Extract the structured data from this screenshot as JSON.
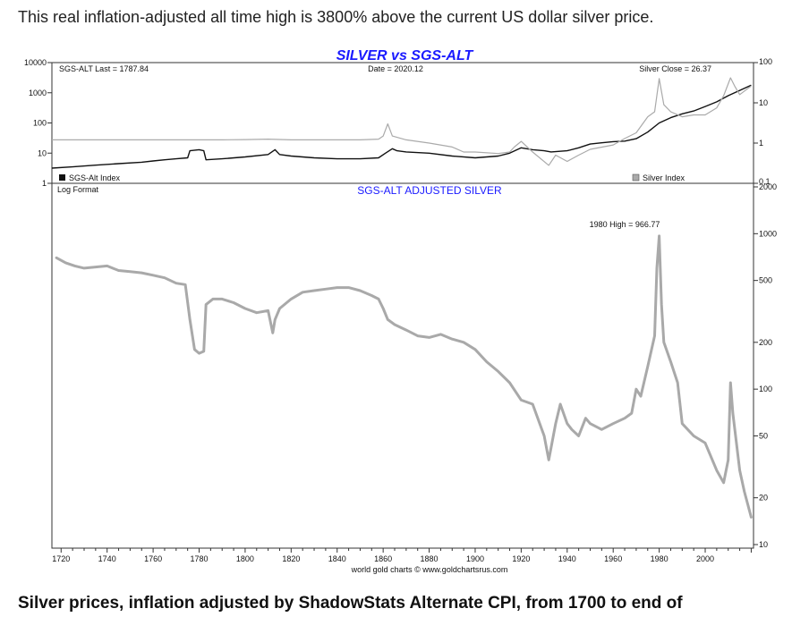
{
  "intro_text": "This real inflation-adjusted all time high is 3800% above the current US dollar silver price.",
  "caption_text": "Silver prices, inflation adjusted by ShadowStats Alternate CPI, from 1700 to end of",
  "colors": {
    "sgs_line": "#111111",
    "silver_line": "#aaaaaa",
    "adjusted_line": "#a9a9a9",
    "title": "#1a1aff"
  },
  "chart_data": [
    {
      "type": "line",
      "title": "SILVER vs SGS-ALT",
      "info_left": "SGS-ALT Last = 1787.84",
      "info_mid": "Date = 2020.12",
      "info_right": "Silver Close = 26.37",
      "legend": [
        "SGS-Alt Index",
        "Silver Index"
      ],
      "x_range": [
        1716,
        2021
      ],
      "y_left": {
        "scale": "log",
        "range": [
          1,
          10000
        ],
        "ticks": [
          1,
          10,
          100,
          1000,
          10000
        ],
        "tick_labels": [
          "1",
          "10",
          "100",
          "1000",
          "10000"
        ]
      },
      "y_right": {
        "scale": "log",
        "range": [
          0.1,
          100
        ],
        "ticks": [
          0.1,
          1,
          10,
          100
        ],
        "tick_labels": [
          "0.1",
          "1",
          "10",
          "100"
        ]
      },
      "series": [
        {
          "name": "SGS-Alt Index",
          "axis": "left",
          "x": [
            1716,
            1725,
            1735,
            1745,
            1755,
            1760,
            1765,
            1770,
            1775,
            1776,
            1780,
            1782,
            1783,
            1790,
            1800,
            1810,
            1813,
            1815,
            1820,
            1830,
            1840,
            1850,
            1858,
            1861,
            1864,
            1866,
            1870,
            1880,
            1890,
            1900,
            1910,
            1915,
            1920,
            1925,
            1930,
            1933,
            1940,
            1945,
            1950,
            1955,
            1960,
            1965,
            1970,
            1975,
            1980,
            1985,
            1990,
            1995,
            2000,
            2005,
            2010,
            2015,
            2020
          ],
          "y": [
            3.2,
            3.5,
            4,
            4.5,
            5,
            5.5,
            6,
            6.5,
            7,
            12,
            13,
            12,
            6,
            6.5,
            7.5,
            9,
            13,
            9,
            8,
            7,
            6.5,
            6.5,
            7,
            10,
            14,
            12,
            11,
            10,
            8,
            7,
            8,
            10,
            15,
            13,
            12,
            11,
            12,
            15,
            20,
            22,
            24,
            25,
            30,
            50,
            100,
            150,
            200,
            250,
            350,
            500,
            800,
            1200,
            1787.84
          ]
        },
        {
          "name": "Silver Index",
          "axis": "right",
          "x": [
            1716,
            1730,
            1750,
            1770,
            1790,
            1800,
            1810,
            1820,
            1830,
            1840,
            1850,
            1858,
            1860,
            1862,
            1864,
            1870,
            1880,
            1890,
            1895,
            1900,
            1910,
            1915,
            1917,
            1920,
            1925,
            1932,
            1935,
            1940,
            1945,
            1950,
            1960,
            1965,
            1970,
            1975,
            1978,
            1980,
            1982,
            1985,
            1990,
            1995,
            2000,
            2005,
            2008,
            2011,
            2013,
            2015,
            2020
          ],
          "y": [
            1.2,
            1.2,
            1.2,
            1.2,
            1.2,
            1.22,
            1.25,
            1.2,
            1.2,
            1.2,
            1.2,
            1.25,
            1.5,
            3,
            1.5,
            1.2,
            1,
            0.8,
            0.6,
            0.6,
            0.55,
            0.6,
            0.8,
            1.1,
            0.6,
            0.28,
            0.5,
            0.35,
            0.5,
            0.7,
            0.9,
            1.3,
            1.8,
            4.5,
            6,
            40,
            9,
            6,
            4.5,
            5,
            5,
            7.5,
            15,
            42,
            25,
            16,
            26.37
          ]
        }
      ]
    },
    {
      "type": "line",
      "title": "SGS-ALT ADJUSTED  SILVER",
      "subtitle": "Log Format",
      "annotation": "1980 High = 966.77",
      "x_range": [
        1716,
        2021
      ],
      "x_ticks": [
        1720,
        1740,
        1760,
        1780,
        1800,
        1820,
        1840,
        1860,
        1880,
        1900,
        1920,
        1940,
        1960,
        1980,
        2000
      ],
      "y_right": {
        "scale": "log",
        "range": [
          10,
          2000
        ],
        "ticks": [
          10,
          20,
          50,
          100,
          200,
          500,
          1000,
          2000
        ],
        "tick_labels": [
          "10",
          "20",
          "50",
          "100",
          "200",
          "500",
          "1000",
          "2000"
        ]
      },
      "source": "world gold charts © www.goldchartsrus.com",
      "series": [
        {
          "name": "",
          "x": [
            1718,
            1722,
            1726,
            1730,
            1735,
            1740,
            1745,
            1750,
            1755,
            1760,
            1765,
            1770,
            1774,
            1776,
            1778,
            1780,
            1782,
            1783,
            1786,
            1790,
            1795,
            1800,
            1805,
            1810,
            1812,
            1813,
            1815,
            1820,
            1825,
            1830,
            1835,
            1840,
            1845,
            1850,
            1855,
            1858,
            1860,
            1862,
            1865,
            1870,
            1875,
            1880,
            1885,
            1890,
            1895,
            1900,
            1905,
            1910,
            1915,
            1920,
            1925,
            1930,
            1932,
            1935,
            1937,
            1940,
            1942,
            1945,
            1948,
            1950,
            1955,
            1960,
            1965,
            1968,
            1970,
            1972,
            1975,
            1978,
            1979,
            1980,
            1981,
            1982,
            1985,
            1988,
            1990,
            1995,
            2000,
            2005,
            2008,
            2010,
            2011,
            2012,
            2015,
            2017,
            2020
          ],
          "y": [
            700,
            650,
            620,
            600,
            610,
            620,
            580,
            570,
            560,
            540,
            520,
            480,
            470,
            280,
            180,
            170,
            175,
            350,
            380,
            380,
            360,
            330,
            310,
            320,
            230,
            280,
            330,
            380,
            420,
            430,
            440,
            450,
            450,
            430,
            400,
            380,
            330,
            280,
            260,
            240,
            220,
            215,
            225,
            210,
            200,
            180,
            150,
            130,
            110,
            85,
            80,
            50,
            35,
            60,
            80,
            60,
            55,
            50,
            65,
            60,
            55,
            60,
            65,
            70,
            100,
            90,
            140,
            220,
            600,
            966.77,
            350,
            200,
            150,
            110,
            60,
            50,
            45,
            30,
            25,
            35,
            110,
            70,
            30,
            22,
            15
          ]
        }
      ]
    }
  ]
}
